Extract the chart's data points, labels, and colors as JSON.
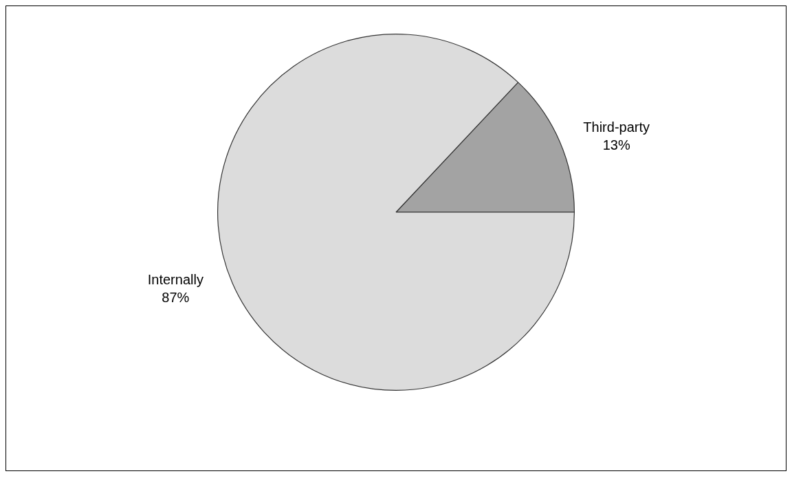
{
  "chart_data": {
    "type": "pie",
    "categories": [
      "Third-party",
      "Internally"
    ],
    "values": [
      13,
      87
    ],
    "colors": [
      "#a3a3a3",
      "#dcdcdc"
    ],
    "value_labels": [
      "13%",
      "87%"
    ],
    "legend": false
  }
}
